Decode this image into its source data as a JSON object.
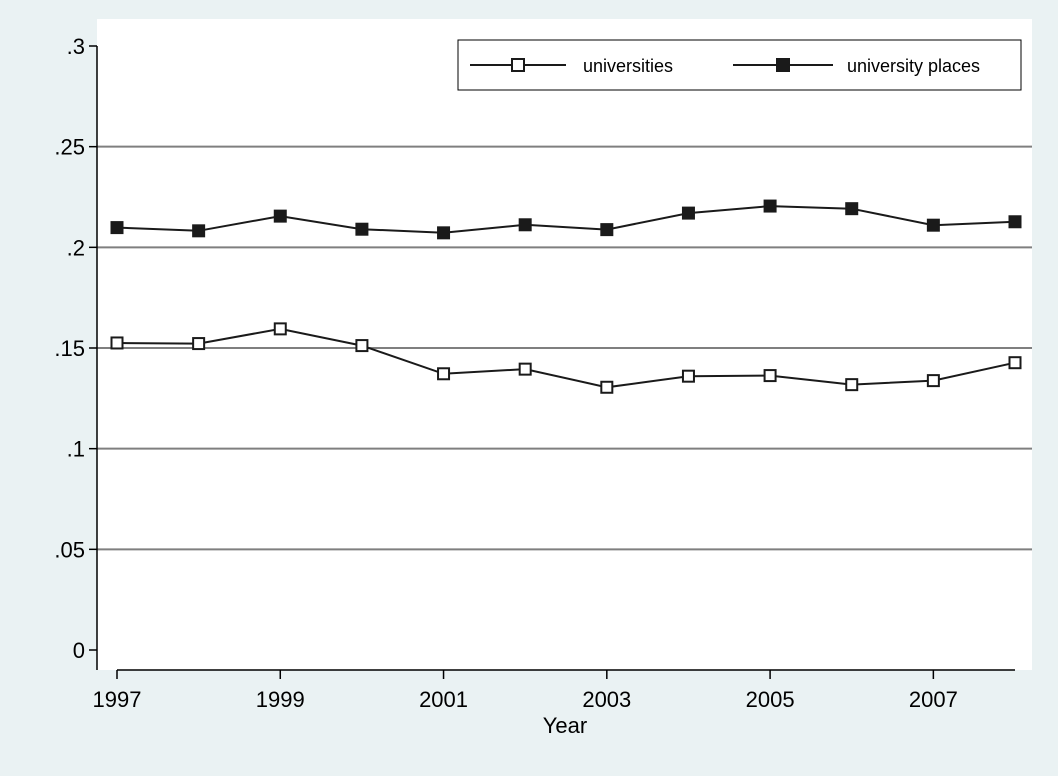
{
  "chart_data": {
    "type": "line",
    "title": "",
    "xlabel": "Year",
    "ylabel": "",
    "x": [
      1997,
      1998,
      1999,
      2000,
      2001,
      2002,
      2003,
      2004,
      2005,
      2006,
      2007,
      2008
    ],
    "xticks": [
      1997,
      1999,
      2001,
      2003,
      2005,
      2007
    ],
    "xtick_labels": [
      "1997",
      "1999",
      "2001",
      "2003",
      "2005",
      "2007"
    ],
    "xlim": [
      1997,
      2008
    ],
    "yticks": [
      0,
      0.05,
      0.1,
      0.15,
      0.2,
      0.25,
      0.3
    ],
    "ytick_labels": [
      "0",
      ".05",
      ".1",
      ".15",
      ".2",
      ".25",
      ".3"
    ],
    "ylim": [
      0,
      0.3
    ],
    "grid": "horizontal",
    "legend_position": "top-right",
    "series": [
      {
        "name": "universities",
        "marker": "hollow-square",
        "values": [
          0.1525,
          0.1522,
          0.1595,
          0.1512,
          0.1372,
          0.1395,
          0.1305,
          0.136,
          0.1363,
          0.1318,
          0.1338,
          0.1427
        ]
      },
      {
        "name": "university places",
        "marker": "filled-square",
        "values": [
          0.2098,
          0.2082,
          0.2155,
          0.209,
          0.2072,
          0.2112,
          0.2088,
          0.217,
          0.2205,
          0.2192,
          0.211,
          0.2127
        ]
      }
    ],
    "colors": {
      "background": "#eaf2f3",
      "plot_area": "#ffffff",
      "grid": "#7f7f7f",
      "line": "#1a1a1a"
    }
  }
}
